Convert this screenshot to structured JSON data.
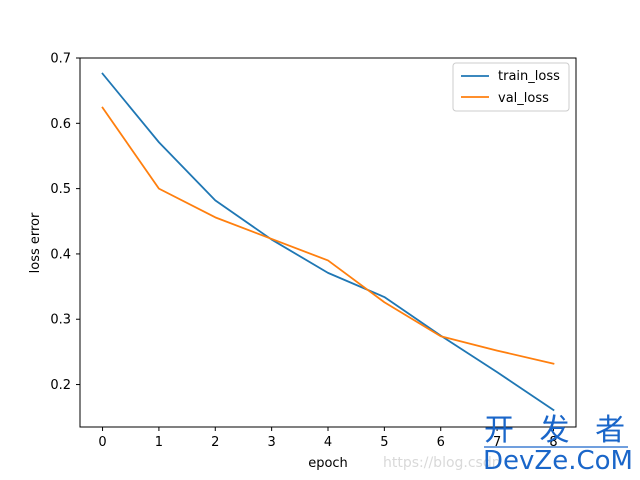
{
  "chart_data": {
    "type": "line",
    "xlabel": "epoch",
    "ylabel": "loss error",
    "x": [
      0,
      1,
      2,
      3,
      4,
      5,
      6,
      7,
      8
    ],
    "xlim": [
      -0.4,
      8.4
    ],
    "ylim": [
      0.135,
      0.7
    ],
    "xticks": [
      "0",
      "1",
      "2",
      "3",
      "4",
      "5",
      "6",
      "7",
      "8"
    ],
    "yticks": [
      "0.2",
      "0.3",
      "0.4",
      "0.5",
      "0.6",
      "0.7"
    ],
    "grid": false,
    "legend_position": "top-right",
    "series": [
      {
        "name": "train_loss",
        "color": "#1f77b4",
        "values": [
          0.676,
          0.571,
          0.482,
          0.422,
          0.371,
          0.334,
          0.275,
          0.219,
          0.161
        ]
      },
      {
        "name": "val_loss",
        "color": "#ff7f0e",
        "values": [
          0.624,
          0.5,
          0.456,
          0.423,
          0.39,
          0.326,
          0.274,
          0.252,
          0.232
        ]
      }
    ]
  },
  "watermark": {
    "text_cn": "开 发 者",
    "text_en": "DevZe.CoM",
    "url": "https://blog.csdn"
  }
}
